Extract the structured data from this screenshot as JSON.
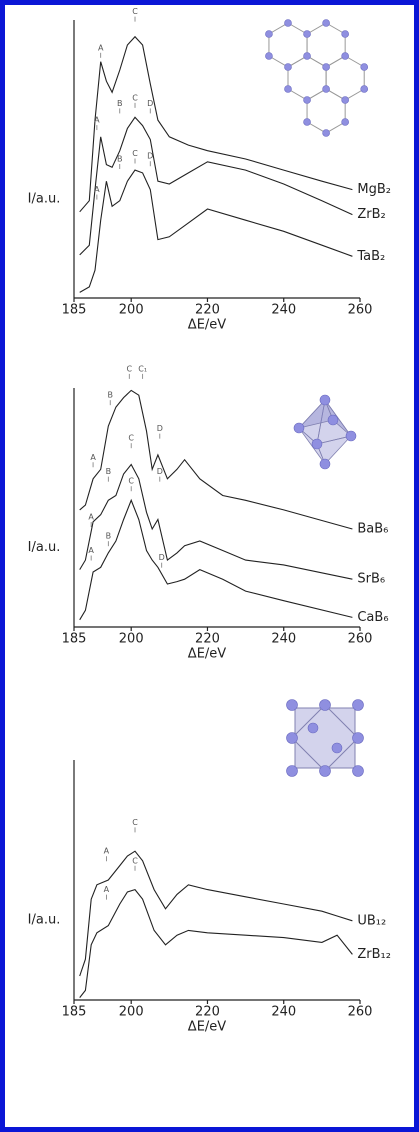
{
  "chart_data": [
    {
      "type": "line",
      "x_label": "ΔE/eV",
      "y_label": "I/a.u.",
      "xlim": [
        185,
        260
      ],
      "xticks": [
        185,
        200,
        220,
        240,
        260
      ],
      "ylim": [
        0,
        100
      ],
      "x": [
        186.5,
        189,
        190.5,
        192,
        193.5,
        195,
        197,
        199,
        201,
        203,
        205,
        207,
        210,
        215,
        220,
        230,
        240,
        250,
        258
      ],
      "series": [
        {
          "name": "MgB₂",
          "color": "#222222",
          "values": [
            31,
            35,
            64,
            85,
            78,
            74,
            82,
            91,
            94,
            91,
            77,
            64,
            58,
            55,
            53,
            50,
            46,
            42,
            39
          ]
        },
        {
          "name": "ZrB₂",
          "color": "#222222",
          "values": [
            15.5,
            19,
            39,
            58,
            48,
            47,
            53,
            61,
            65,
            62,
            57,
            42,
            41,
            45,
            49,
            46,
            41,
            35,
            30
          ]
        },
        {
          "name": "TaB₂",
          "color": "#222222",
          "values": [
            2,
            4,
            10,
            28,
            42,
            33,
            35,
            42,
            46,
            45,
            39,
            21,
            22,
            27,
            32,
            28,
            24,
            19,
            15
          ]
        }
      ],
      "annotations": [
        {
          "text": "A",
          "x": 192,
          "y": 90
        },
        {
          "text": "C",
          "x": 201,
          "y": 103
        },
        {
          "text": "A",
          "x": 191,
          "y": 64
        },
        {
          "text": "B",
          "x": 197,
          "y": 70
        },
        {
          "text": "C",
          "x": 201,
          "y": 72
        },
        {
          "text": "D",
          "x": 205,
          "y": 70
        },
        {
          "text": "A",
          "x": 191,
          "y": 39
        },
        {
          "text": "B",
          "x": 197,
          "y": 50
        },
        {
          "text": "C",
          "x": 201,
          "y": 52
        },
        {
          "text": "D",
          "x": 205,
          "y": 51
        }
      ]
    },
    {
      "type": "line",
      "x_label": "ΔE/eV",
      "y_label": "I/a.u.",
      "xlim": [
        185,
        260
      ],
      "xticks": [
        185,
        200,
        220,
        240,
        260
      ],
      "ylim": [
        0,
        100
      ],
      "x": [
        186.5,
        188,
        190,
        192,
        194,
        196,
        198,
        200,
        202,
        204,
        205.5,
        207,
        209.5,
        212,
        214,
        218,
        224,
        230,
        240,
        258
      ],
      "series": [
        {
          "name": "BaB₆",
          "color": "#222222",
          "values": [
            49,
            51,
            62,
            66,
            84,
            92,
            96,
            99,
            97,
            82,
            66,
            72,
            62,
            66,
            70,
            62,
            55,
            53,
            49,
            41
          ]
        },
        {
          "name": "SrB₆",
          "color": "#222222",
          "values": [
            24,
            28,
            44,
            47,
            53,
            55,
            64,
            68,
            62,
            48,
            41,
            45,
            28,
            31,
            34,
            36,
            32,
            28,
            26,
            20
          ]
        },
        {
          "name": "CaB₆",
          "color": "#222222",
          "values": [
            3,
            7,
            23,
            25,
            31,
            36,
            45,
            53,
            45,
            32,
            28,
            25,
            18,
            19,
            20,
            24,
            20,
            15,
            11,
            4
          ]
        }
      ],
      "annotations": [
        {
          "text": "A",
          "x": 190,
          "y": 71
        },
        {
          "text": "B",
          "x": 194.5,
          "y": 97
        },
        {
          "text": "C",
          "x": 199.5,
          "y": 108
        },
        {
          "text": "C₁",
          "x": 203,
          "y": 108
        },
        {
          "text": "D",
          "x": 207.5,
          "y": 83
        },
        {
          "text": "A",
          "x": 189.5,
          "y": 46
        },
        {
          "text": "B",
          "x": 194,
          "y": 65
        },
        {
          "text": "C",
          "x": 200,
          "y": 79
        },
        {
          "text": "D",
          "x": 207.5,
          "y": 65
        },
        {
          "text": "A",
          "x": 189.5,
          "y": 32
        },
        {
          "text": "B",
          "x": 194,
          "y": 38
        },
        {
          "text": "C",
          "x": 200,
          "y": 61
        },
        {
          "text": "D",
          "x": 208,
          "y": 29
        }
      ]
    },
    {
      "type": "line",
      "x_label": "ΔE/eV",
      "y_label": "I/a.u.",
      "xlim": [
        185,
        260
      ],
      "xticks": [
        185,
        200,
        220,
        240,
        260
      ],
      "ylim": [
        0,
        100
      ],
      "x": [
        186.5,
        188,
        189.5,
        191,
        194,
        197,
        199,
        201,
        203,
        206,
        209,
        212,
        215,
        220,
        230,
        240,
        250,
        254,
        258
      ],
      "series": [
        {
          "name": "UB₁₂",
          "color": "#222222",
          "values": [
            10,
            17,
            42,
            48,
            50,
            56,
            60,
            62,
            58,
            46,
            38,
            44,
            48,
            46,
            43,
            40,
            37,
            35,
            33
          ]
        },
        {
          "name": "ZrB₁₂",
          "color": "#222222",
          "values": [
            1,
            4,
            23,
            28,
            31,
            40,
            45,
            46,
            42,
            29,
            23,
            27,
            29,
            28,
            27,
            26,
            24,
            27,
            19
          ]
        }
      ],
      "annotations": [
        {
          "text": "C",
          "x": 201,
          "y": 74
        },
        {
          "text": "A",
          "x": 193.5,
          "y": 62
        },
        {
          "text": "C",
          "x": 201,
          "y": 58
        },
        {
          "text": "A",
          "x": 193.5,
          "y": 46
        }
      ]
    }
  ]
}
